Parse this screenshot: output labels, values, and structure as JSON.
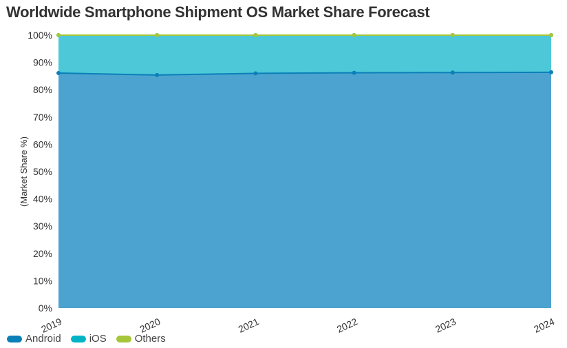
{
  "chart_data": {
    "type": "area",
    "stacked": "percent",
    "title": "Worldwide Smartphone Shipment OS Market Share Forecast",
    "xlabel": "",
    "ylabel": "(Market Share %)",
    "categories": [
      "2019",
      "2020",
      "2021",
      "2022",
      "2023",
      "2024"
    ],
    "ylim": [
      0,
      100
    ],
    "yticks": [
      "0%",
      "10%",
      "20%",
      "30%",
      "40%",
      "50%",
      "60%",
      "70%",
      "80%",
      "90%",
      "100%"
    ],
    "grid": false,
    "legend_position": "bottom-left",
    "series": [
      {
        "name": "Android",
        "color": "#0a7fb8",
        "fill": "#4da3d0",
        "values": [
          86.1,
          85.4,
          86.0,
          86.2,
          86.3,
          86.4
        ]
      },
      {
        "name": "iOS",
        "color": "#00b4c6",
        "fill": "#4dc8d8",
        "values": [
          13.9,
          14.6,
          14.0,
          13.8,
          13.7,
          13.6
        ]
      },
      {
        "name": "Others",
        "color": "#a6c63a",
        "fill": "#a6c63a",
        "values": [
          0.0,
          0.0,
          0.0,
          0.0,
          0.0,
          0.0
        ]
      }
    ]
  }
}
